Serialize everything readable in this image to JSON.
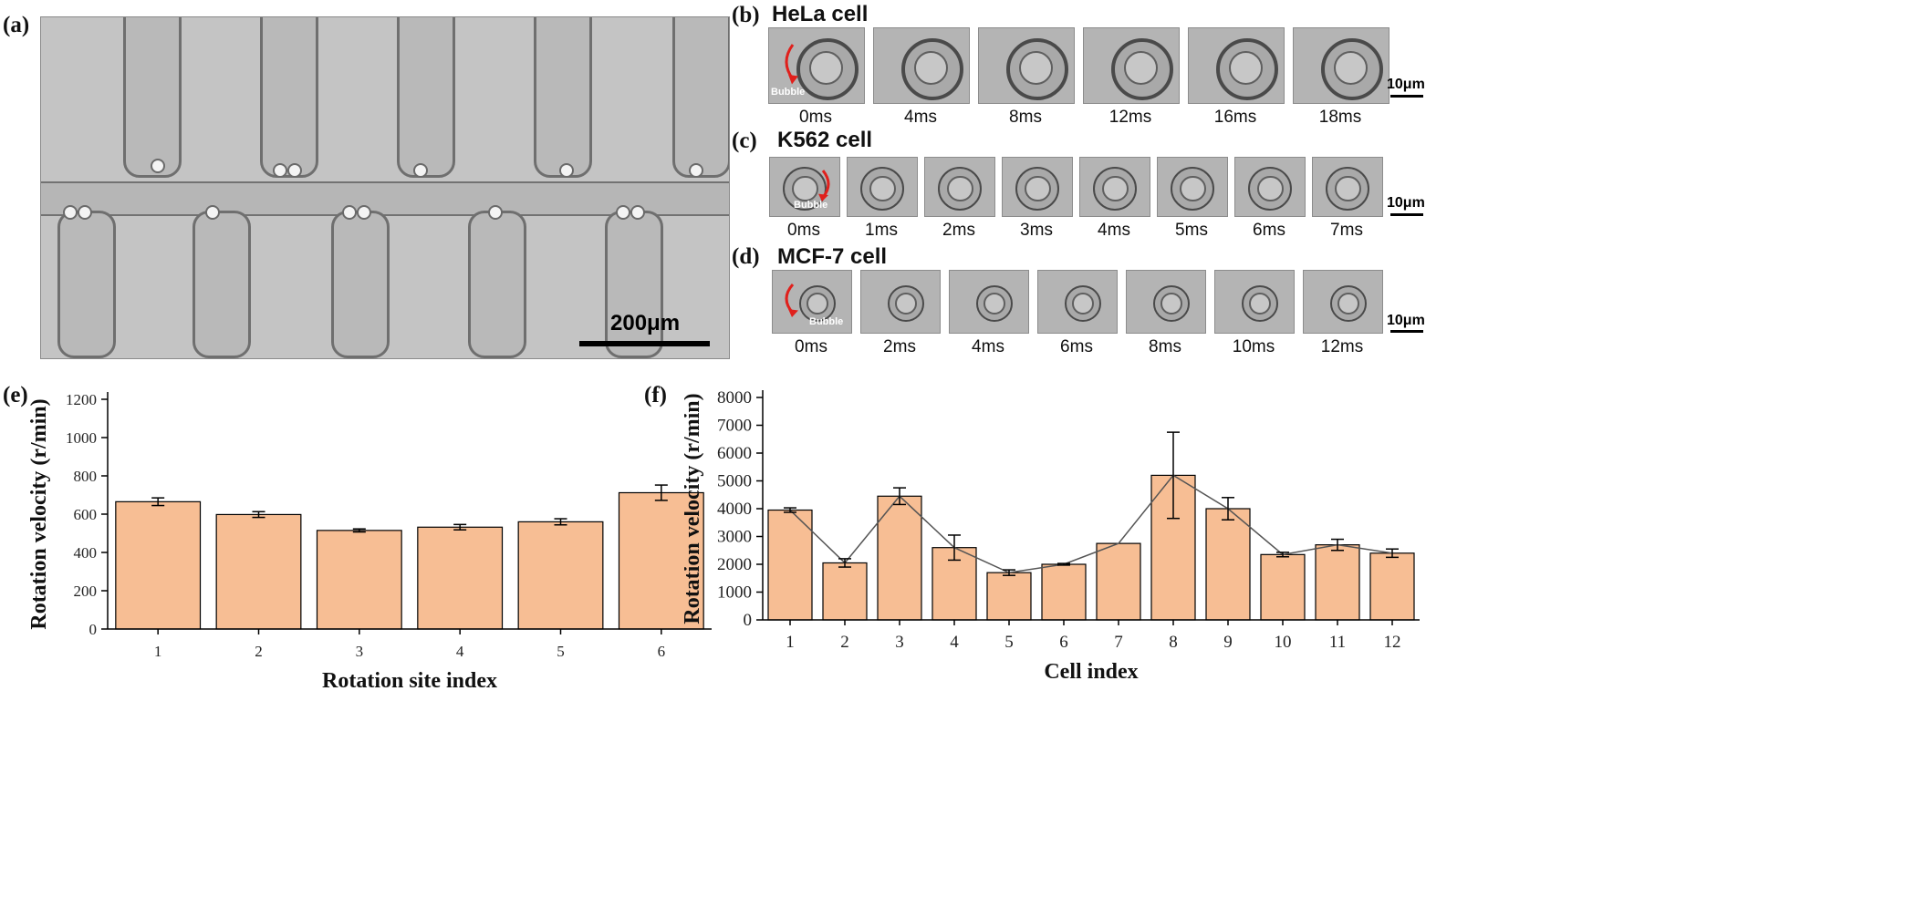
{
  "panels": {
    "a": {
      "label": "(a)",
      "scalebar": "200μm"
    },
    "b": {
      "label": "(b)",
      "title": "HeLa cell",
      "bubble": "Bubble",
      "scalebar": "10μm",
      "times": [
        "0ms",
        "4ms",
        "8ms",
        "12ms",
        "16ms",
        "18ms"
      ]
    },
    "c": {
      "label": "(c)",
      "title": "K562 cell",
      "bubble": "Bubble",
      "scalebar": "10μm",
      "times": [
        "0ms",
        "1ms",
        "2ms",
        "3ms",
        "4ms",
        "5ms",
        "6ms",
        "7ms"
      ]
    },
    "d": {
      "label": "(d)",
      "title": "MCF-7 cell",
      "bubble": "Bubble",
      "scalebar": "10μm",
      "times": [
        "0ms",
        "2ms",
        "4ms",
        "6ms",
        "8ms",
        "10ms",
        "12ms"
      ]
    },
    "e": {
      "label": "(e)"
    },
    "f": {
      "label": "(f)"
    }
  },
  "colors": {
    "bar": "#f7be94",
    "axis": "#000000",
    "line": "#555555",
    "arrow": "#e0201c"
  },
  "chart_data": [
    {
      "type": "bar",
      "panel": "e",
      "xlabel": "Rotation site index",
      "ylabel": "Rotation velocity (r/min)",
      "categories": [
        "1",
        "2",
        "3",
        "4",
        "5",
        "6"
      ],
      "values": [
        665,
        598,
        515,
        532,
        560,
        712
      ],
      "errors": [
        20,
        15,
        8,
        14,
        16,
        40
      ],
      "ylim": [
        0,
        1200
      ],
      "yticks": [
        0,
        200,
        400,
        600,
        800,
        1000,
        1200
      ],
      "grid": false
    },
    {
      "type": "bar",
      "panel": "f",
      "xlabel": "Cell index",
      "ylabel": "Rotation velocity (r/min)",
      "categories": [
        "1",
        "2",
        "3",
        "4",
        "5",
        "6",
        "7",
        "8",
        "9",
        "10",
        "11",
        "12"
      ],
      "values": [
        3950,
        2050,
        4450,
        2600,
        1700,
        2000,
        2750,
        5200,
        4000,
        2350,
        2700,
        2400
      ],
      "errors": [
        80,
        150,
        300,
        450,
        100,
        30,
        0,
        1550,
        400,
        80,
        200,
        150
      ],
      "line": true,
      "ylim": [
        0,
        8000
      ],
      "yticks": [
        0,
        1000,
        2000,
        3000,
        4000,
        5000,
        6000,
        7000,
        8000
      ],
      "grid": false
    }
  ]
}
